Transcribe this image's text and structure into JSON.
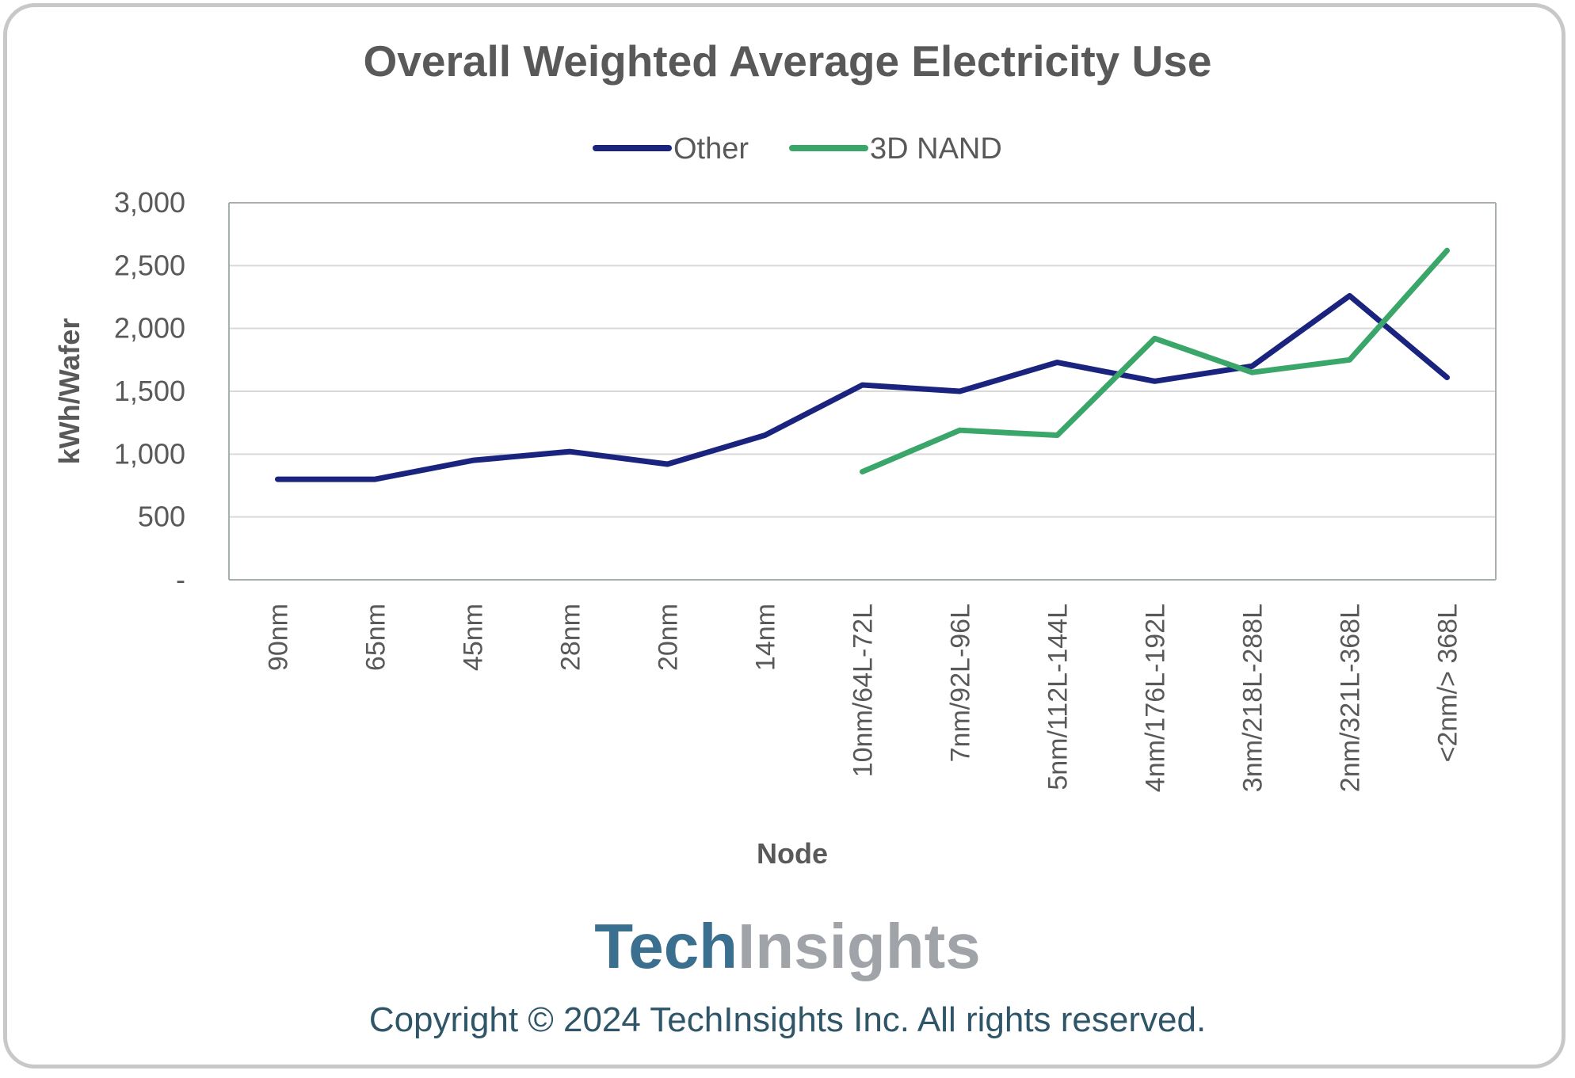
{
  "chart_data": {
    "type": "line",
    "title": "Overall Weighted Average Electricity Use",
    "xlabel": "Node",
    "ylabel": "kWh/Wafer",
    "ylim": [
      0,
      3000
    ],
    "yticks": [
      0,
      500,
      1000,
      1500,
      2000,
      2500,
      3000
    ],
    "ytick_labels": [
      "-",
      "500",
      "1,000",
      "1,500",
      "2,000",
      "2,500",
      "3,000"
    ],
    "grid": true,
    "legend_position": "top",
    "categories": [
      "90nm",
      "65nm",
      "45nm",
      "28nm",
      "20nm",
      "14nm",
      "10nm/64L-72L",
      "7nm/92L-96L",
      "5nm/112L-144L",
      "4nm/176L-192L",
      "3nm/218L-288L",
      "2nm/321L-368L",
      "<2nm/> 368L"
    ],
    "series": [
      {
        "name": "Other",
        "color": "#1a237e",
        "values": [
          800,
          800,
          950,
          1020,
          920,
          1150,
          1550,
          1500,
          1730,
          1580,
          1700,
          2260,
          1610
        ]
      },
      {
        "name": "3D NAND",
        "color": "#3aa66a",
        "values": [
          null,
          null,
          null,
          null,
          null,
          null,
          860,
          1190,
          1150,
          1920,
          1650,
          1750,
          2620
        ]
      }
    ]
  },
  "branding": {
    "logo_part1": "Tech",
    "logo_part2": "Insights",
    "logo_color1": "#3a6f8f",
    "logo_color2": "#a0a4a8",
    "copyright": "Copyright © 2024 TechInsights Inc.  All rights reserved."
  }
}
